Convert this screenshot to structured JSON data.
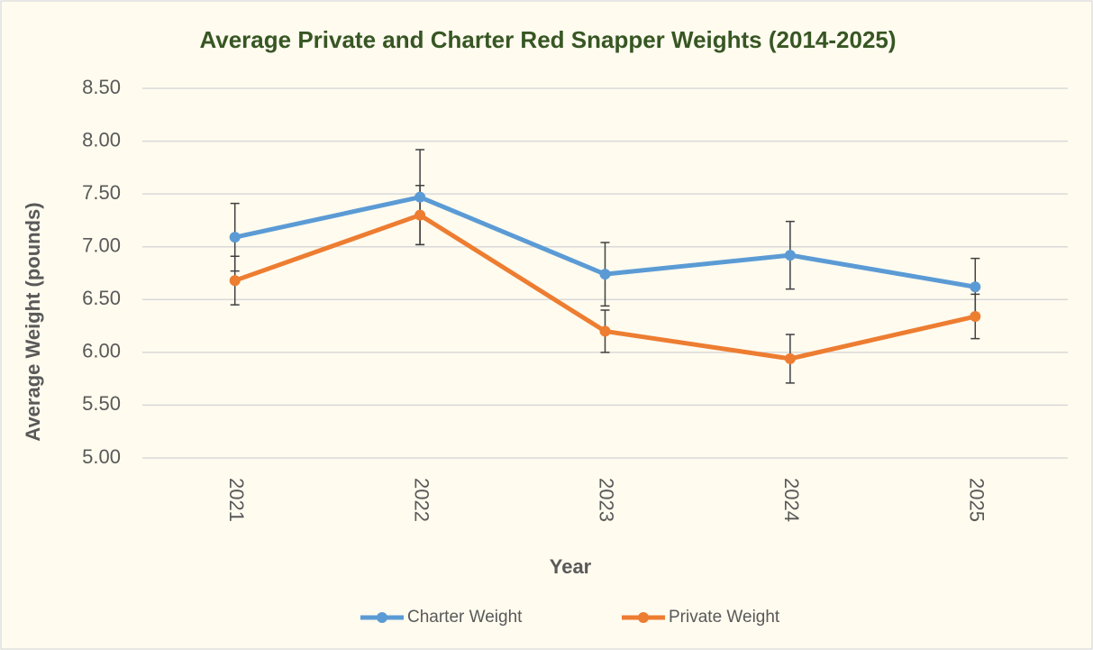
{
  "chart_data": {
    "type": "line",
    "title": "Average Private and Charter Red Snapper Weights (2014-2025)",
    "x_label": "Year",
    "y_label": "Average Weight (pounds)",
    "categories": [
      "2021",
      "2022",
      "2023",
      "2024",
      "2025"
    ],
    "series": [
      {
        "name": "Charter Weight",
        "color": "#5b9bd5",
        "values": [
          7.09,
          7.47,
          6.74,
          6.92,
          6.62
        ],
        "errors": [
          0.32,
          0.45,
          0.3,
          0.32,
          0.27
        ]
      },
      {
        "name": "Private Weight",
        "color": "#ed7d31",
        "values": [
          6.68,
          7.3,
          6.2,
          5.94,
          6.34
        ],
        "errors": [
          0.23,
          0.28,
          0.2,
          0.23,
          0.21
        ]
      }
    ],
    "ylim": [
      5,
      8.5
    ],
    "yticks": [
      {
        "value": 5,
        "label": "5.00"
      },
      {
        "value": 5.5,
        "label": "5.50"
      },
      {
        "value": 6,
        "label": "6.00"
      },
      {
        "value": 6.5,
        "label": "6.50"
      },
      {
        "value": 7,
        "label": "7.00"
      },
      {
        "value": 7.5,
        "label": "7.50"
      },
      {
        "value": 8,
        "label": "8.00"
      },
      {
        "value": 8.5,
        "label": "8.50"
      }
    ],
    "grid": true,
    "legend": "bottom"
  }
}
